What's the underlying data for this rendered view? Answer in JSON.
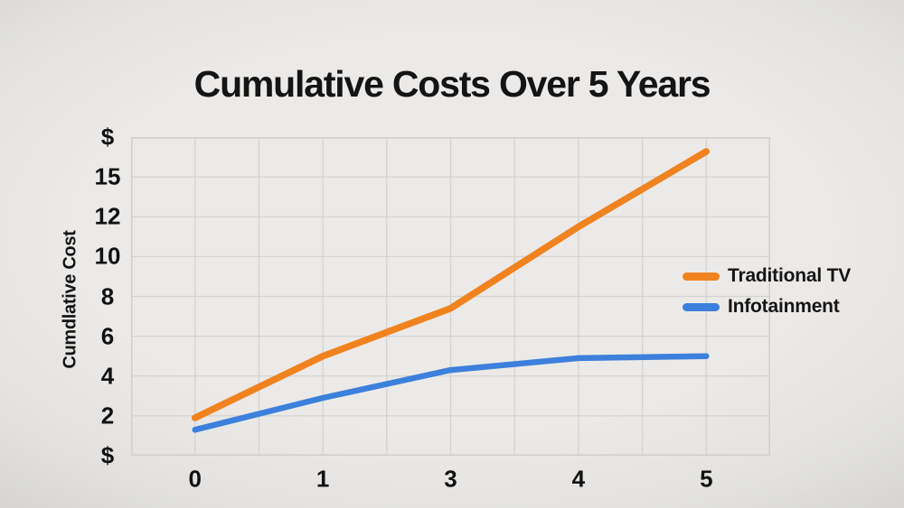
{
  "title": "Cumulative Costs Over 5 Years",
  "y_axis": {
    "title": "Cumdlative Cost"
  },
  "colors": {
    "background": "#e8e7e5",
    "gridline": "#d4d3d1",
    "plot_border": "#cfcecd",
    "text": "#141414",
    "traditional_tv": "#F0831F",
    "infotainment": "#3C80DC"
  },
  "chart_data": {
    "type": "line",
    "title": "Cumulative Costs Over 5 Years",
    "xlabel": "",
    "ylabel": "Cumdlative Cost",
    "categories": [
      "0",
      "1",
      "3",
      "4",
      "5"
    ],
    "series": [
      {
        "name": "Traditional TV",
        "color": "#F0831F",
        "stroke_width": 7.5,
        "values": [
          1.9,
          5.0,
          7.4,
          11.5,
          16.6
        ]
      },
      {
        "name": "Infotainment",
        "color": "#3C80DC",
        "stroke_width": 6.5,
        "values": [
          1.3,
          2.9,
          4.3,
          4.9,
          5.0
        ]
      }
    ],
    "y_tick_labels_top_to_bottom": [
      "$",
      "15",
      "12",
      "10",
      "8",
      "6",
      "4",
      "2",
      "$"
    ],
    "y_value_anchors_bottom_to_top": [
      0,
      2,
      4,
      6,
      8,
      10,
      12,
      15,
      17.5
    ],
    "x_gridline_intervals": 10,
    "y_gridline_intervals": 8,
    "grid": true,
    "legend_position": "right-inside"
  }
}
